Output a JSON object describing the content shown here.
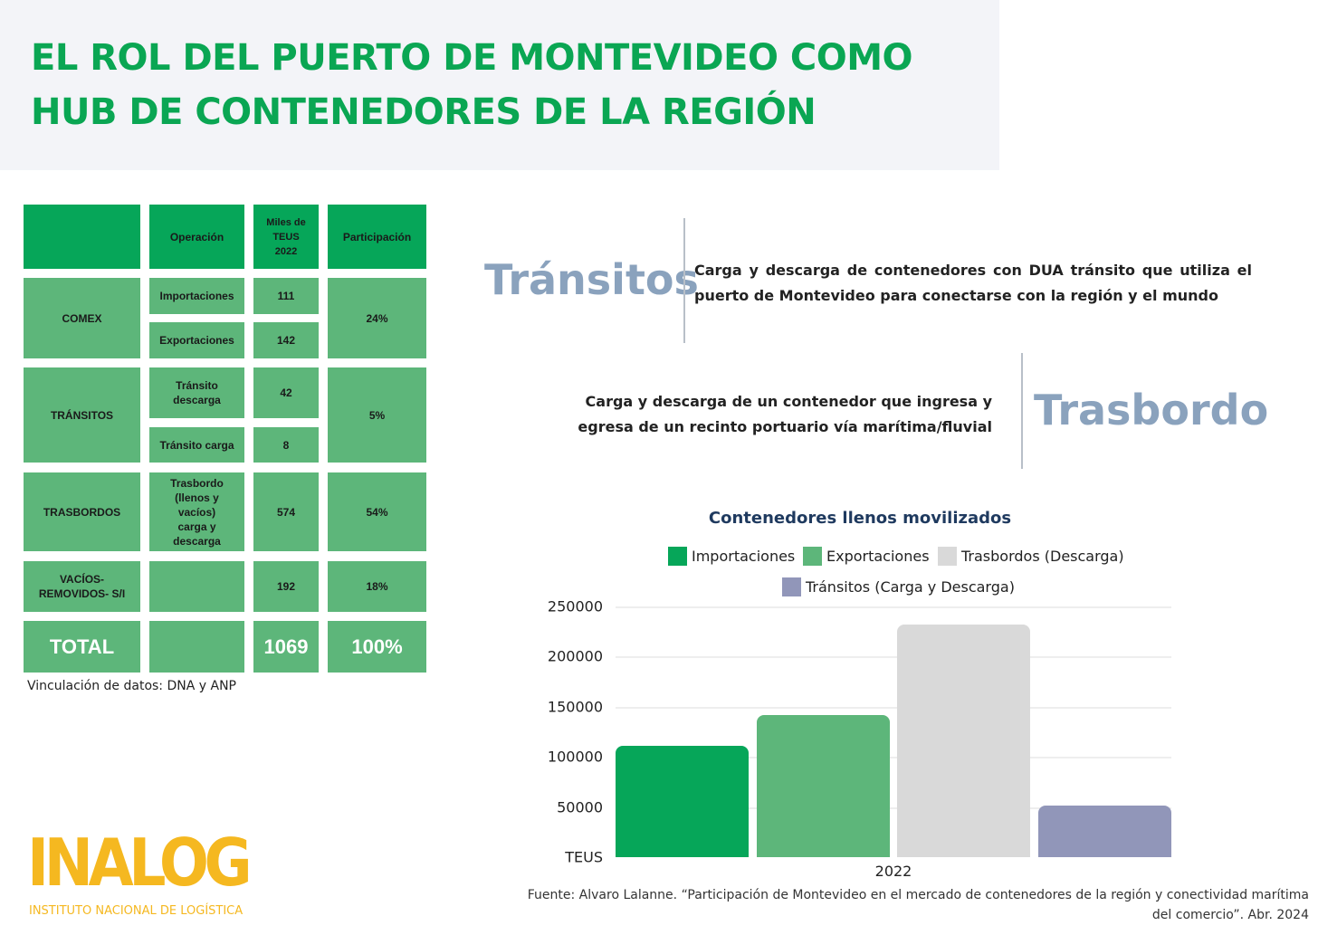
{
  "title": "EL ROL DEL PUERTO DE MONTEVIDEO COMO HUB DE CONTENEDORES DE LA REGIÓN",
  "table": {
    "headers": [
      "",
      "Operación",
      "Miles de TEUS 2022",
      "Participación"
    ],
    "groups": [
      {
        "name": "COMEX",
        "share": "24%",
        "ops": [
          {
            "op": "Importaciones",
            "teus": "111"
          },
          {
            "op": "Exportaciones",
            "teus": "142"
          }
        ]
      },
      {
        "name": "TRÁNSITOS",
        "share": "5%",
        "ops": [
          {
            "op": "Tránsito descarga",
            "teus": "42"
          },
          {
            "op": "Tránsito carga",
            "teus": "8"
          }
        ]
      },
      {
        "name": "TRASBORDOS",
        "share": "54%",
        "ops": [
          {
            "op": "Trasbordo (llenos y vacíos) carga y descarga",
            "teus": "574"
          }
        ]
      },
      {
        "name": "VACÍOS-REMOVIDOS- S/I",
        "share": "18%",
        "ops": [
          {
            "op": "",
            "teus": "192"
          }
        ]
      }
    ],
    "total": {
      "label": "TOTAL",
      "teus": "1069",
      "share": "100%"
    },
    "note": "Vinculación de datos: DNA y ANP"
  },
  "definitions": {
    "transitos": {
      "word": "Tránsitos",
      "text": "Carga y descarga de contenedores con DUA tránsito que utiliza el puerto de Montevideo para conectarse con la región y el mundo"
    },
    "trasbordo": {
      "word": "Trasbordo",
      "text": "Carga y descarga de un contenedor que ingresa y egresa de un recinto portuario vía marítima/fluvial"
    }
  },
  "chart_data": {
    "type": "bar",
    "title": "Contenedores llenos movilizados",
    "categories": [
      "2022"
    ],
    "ylabel": "TEUS",
    "ylim": [
      0,
      250000
    ],
    "yticks": [
      "250000",
      "200000",
      "150000",
      "100000",
      "50000"
    ],
    "grid": true,
    "legend": "top",
    "series": [
      {
        "name": "Importaciones",
        "values": [
          111000
        ],
        "color": "#06a659"
      },
      {
        "name": "Exportaciones",
        "values": [
          142000
        ],
        "color": "#5db67a"
      },
      {
        "name": "Trasbordos (Descarga)",
        "values": [
          232000
        ],
        "color": "#d9d9d9"
      },
      {
        "name": "Tránsitos (Carga y Descarga)",
        "values": [
          51000
        ],
        "color": "#9196b9"
      }
    ]
  },
  "source": "Fuente: Alvaro Lalanne. “Participación de Montevideo en el mercado de contenedores de la región y conectividad marítima del comercio”. Abr. 2024",
  "logo": {
    "name": "INALOG",
    "subtitle": "INSTITUTO NACIONAL DE LOGÍSTICA"
  }
}
